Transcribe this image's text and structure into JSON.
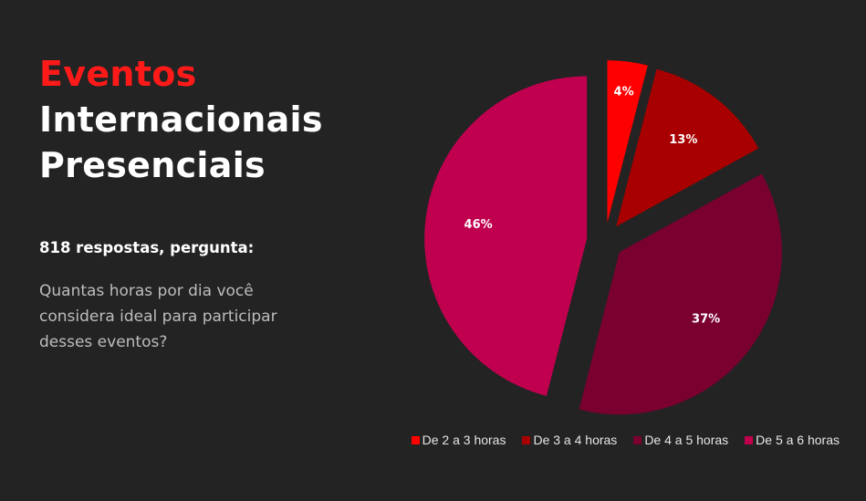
{
  "header": {
    "title_accent": "Eventos",
    "title_line2": "Internacionais",
    "title_line3": "Presenciais"
  },
  "survey": {
    "responses_label": "818 respostas, pergunta:",
    "question_lines": [
      "Quantas horas por dia você",
      "considera ideal para participar",
      "desses eventos?"
    ]
  },
  "colors": {
    "background": "#232323",
    "accent": "#ff1a1a"
  },
  "chart_data": {
    "type": "pie",
    "exploded": true,
    "legend_position": "bottom-right",
    "slices": [
      {
        "label": "De 2 a 3 horas",
        "value": 4,
        "display": "4%",
        "color": "#ff0000"
      },
      {
        "label": "De 3 a 4 horas",
        "value": 13,
        "display": "13%",
        "color": "#a80000"
      },
      {
        "label": "De 4 a 5 horas",
        "value": 37,
        "display": "37%",
        "color": "#7a0030"
      },
      {
        "label": "De 5 a 6 horas",
        "value": 46,
        "display": "46%",
        "color": "#c0004e"
      }
    ]
  }
}
